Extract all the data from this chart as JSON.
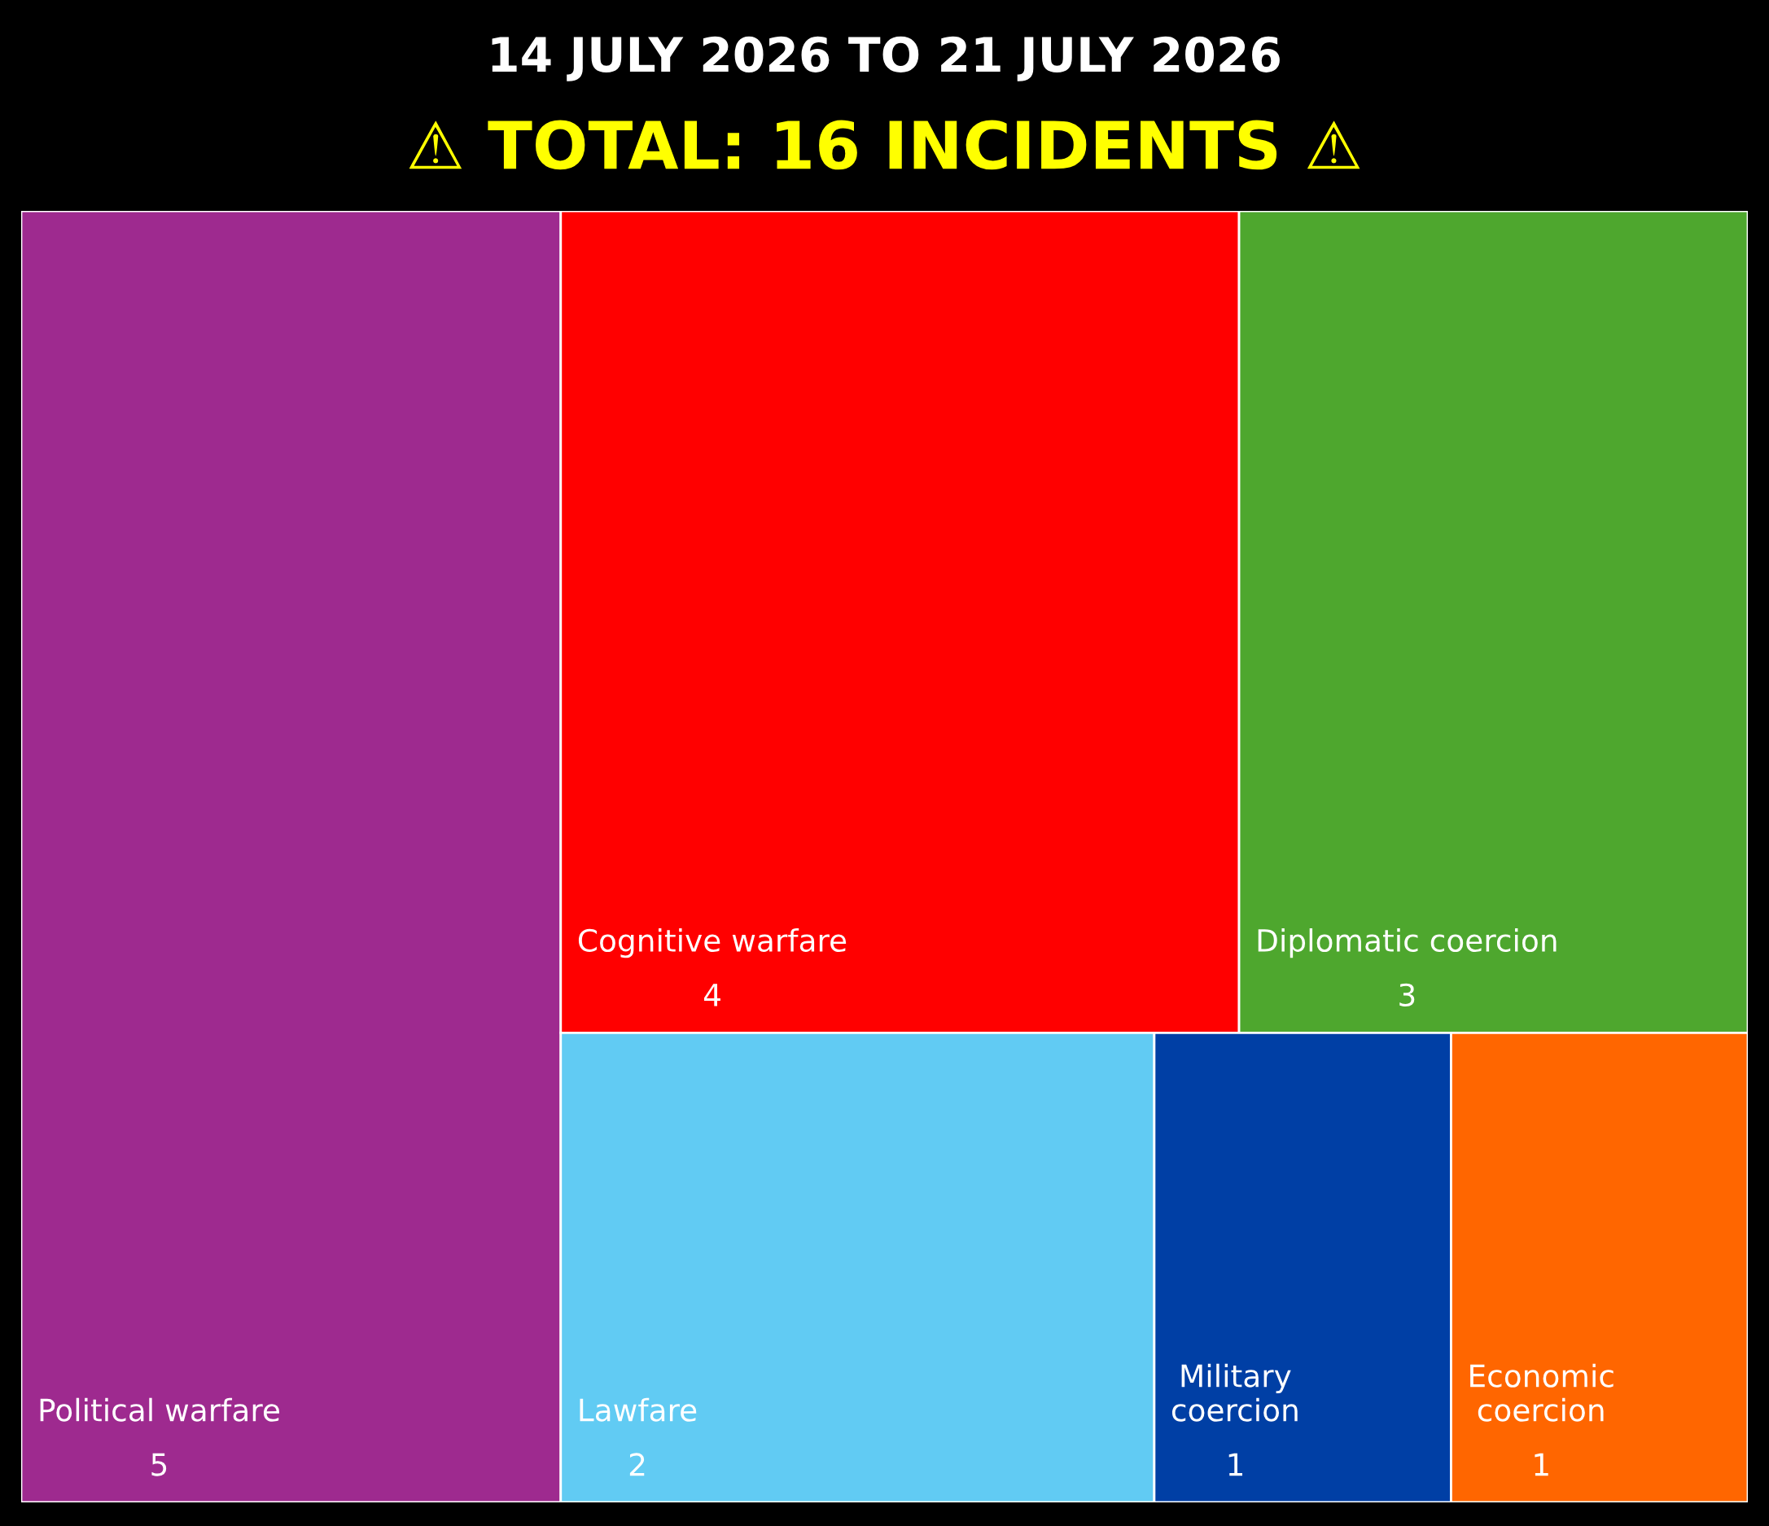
{
  "chart_data": {
    "type": "other",
    "title": "14 JULY 2026 TO 21 JULY 2026",
    "subtitle": "⚠ TOTAL: 16 INCIDENTS ⚠",
    "categories": [
      "Political warfare",
      "Cognitive warfare",
      "Diplomatic coercion",
      "Lawfare",
      "Military coercion",
      "Economic coercion"
    ],
    "values": [
      5,
      4,
      3,
      2,
      1,
      1
    ],
    "colors": [
      "#9e2a8f",
      "#ff0000",
      "#4ea72e",
      "#61cbf3",
      "#003fa5",
      "#ff6600"
    ],
    "data_labels": true
  }
}
